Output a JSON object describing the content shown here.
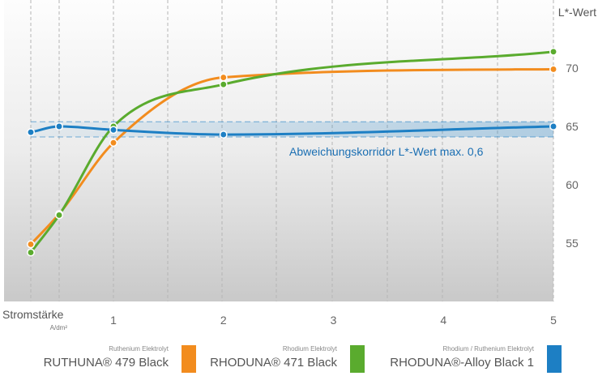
{
  "chart_data": {
    "type": "line",
    "ylabel": "L*-Wert",
    "xlabel": "Stromstärke",
    "xunit": "A/dm²",
    "x_ticks": [
      1,
      2,
      3,
      4,
      5
    ],
    "y_ticks": [
      55,
      60,
      65,
      70
    ],
    "xlim": [
      0,
      5
    ],
    "ylim": [
      50,
      75
    ],
    "grid": "vertical dashed",
    "corridor": {
      "label": "Abweichungskorridor L*-Wert max. 0,6",
      "ymin": 64.1,
      "ymax": 65.4
    },
    "series": [
      {
        "name": "RUTHUNA® 479 Black",
        "category": "Ruthenium Elektrolyt",
        "color": "#f28c1e",
        "x": [
          0,
          0.25,
          1,
          2,
          5
        ],
        "y": [
          54.9,
          57.5,
          63.6,
          69.2,
          69.9
        ]
      },
      {
        "name": "RHODUNA® 471 Black",
        "category": "Rhodium Elektrolyt",
        "color": "#5aab2e",
        "x": [
          0,
          0.25,
          1,
          2,
          5
        ],
        "y": [
          54.2,
          57.4,
          65.0,
          68.6,
          71.4
        ]
      },
      {
        "name": "RHODUNA®-Alloy Black 1",
        "category": "Rhodium / Ruthenium Elektrolyt",
        "color": "#1d7fc4",
        "x": [
          0,
          0.25,
          1,
          2,
          5
        ],
        "y": [
          64.5,
          65.0,
          64.7,
          64.3,
          65.0
        ]
      }
    ]
  }
}
